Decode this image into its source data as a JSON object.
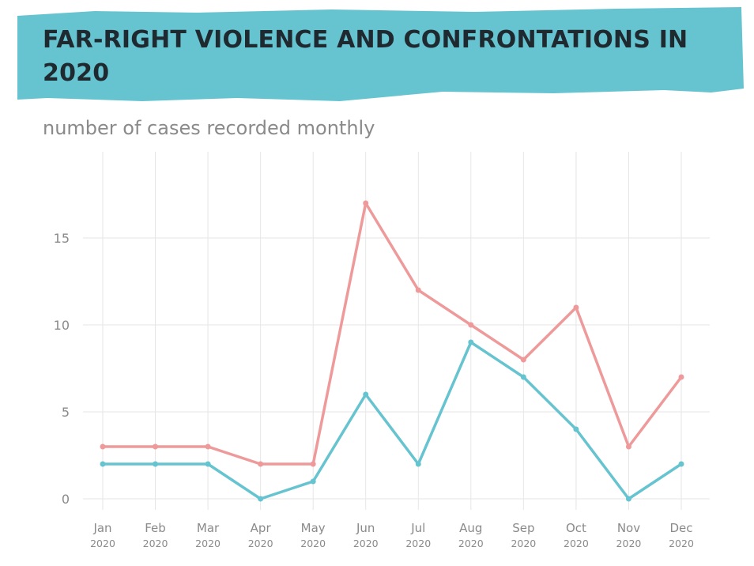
{
  "header": {
    "title": "FAR-RIGHT VIOLENCE AND CONFRONTATIONS IN 2020",
    "subtitle": "number of cases recorded monthly"
  },
  "colors": {
    "banner": "#66c3d0",
    "title": "#1f2a30",
    "grid": "#e6e6e6",
    "text": "#8a8a8a"
  },
  "chart_data": {
    "type": "line",
    "title": "FAR-RIGHT VIOLENCE AND CONFRONTATIONS IN 2020",
    "subtitle": "number of cases recorded monthly",
    "categories": [
      "Jan",
      "Feb",
      "Mar",
      "Apr",
      "May",
      "Jun",
      "Jul",
      "Aug",
      "Sep",
      "Oct",
      "Nov",
      "Dec"
    ],
    "category_year": "2020",
    "series": [
      {
        "color": "#ef9a9a",
        "values": [
          3,
          3,
          3,
          2,
          2,
          17,
          12,
          10,
          8,
          11,
          3,
          7
        ]
      },
      {
        "color": "#66c3d0",
        "values": [
          2,
          2,
          2,
          0,
          1,
          6,
          2,
          9,
          7,
          4,
          0,
          2
        ]
      }
    ],
    "yticks": [
      0,
      5,
      10,
      15
    ],
    "ylim": [
      0,
      19.5
    ],
    "grid": true,
    "legend": "none"
  }
}
